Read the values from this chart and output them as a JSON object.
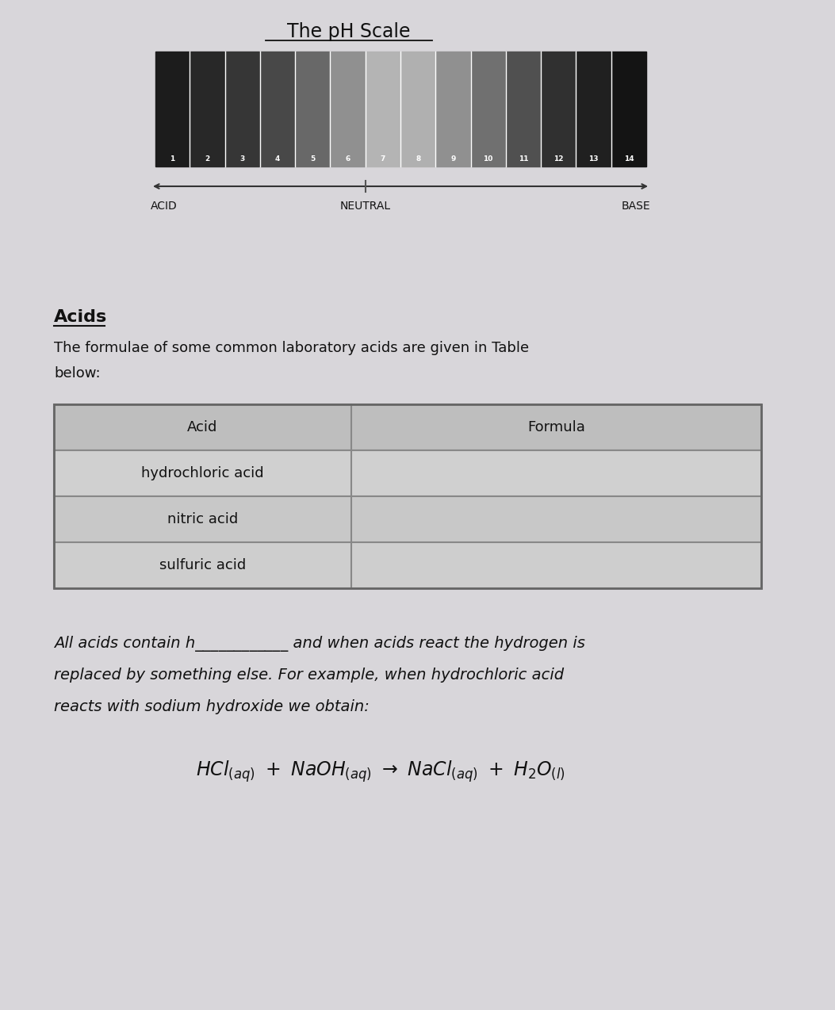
{
  "bg_color": "#cccbcf",
  "paper_color": "#d8d6da",
  "title": "The pH Scale",
  "title_fontsize": 17,
  "acids_heading": "Acids",
  "intro_line1": "The formulae of some common laboratory acids are given in Table",
  "intro_line2": "below:",
  "table_headers": [
    "Acid",
    "Formula"
  ],
  "table_rows": [
    [
      "hydrochloric acid",
      ""
    ],
    [
      "nitric acid",
      ""
    ],
    [
      "sulfuric acid",
      ""
    ]
  ],
  "fill_line1": "All acids contain h____________ and when acids react the hydrogen is",
  "fill_line2": "replaced by something else. For example, when hydrochloric acid",
  "fill_line3": "reacts with sodium hydroxide we obtain:",
  "acid_label": "ACID",
  "neutral_label": "NEUTRAL",
  "base_label": "BASE",
  "ph_bar_colors": [
    "#1c1c1c",
    "#282828",
    "#363636",
    "#484848",
    "#686868",
    "#909090",
    "#b4b4b4",
    "#b0b0b0",
    "#909090",
    "#707070",
    "#505050",
    "#303030",
    "#202020",
    "#141414"
  ],
  "ph_labels": [
    "1",
    "2",
    "3",
    "4",
    "5",
    "6",
    "7",
    "8",
    "9",
    "10",
    "11",
    "12",
    "13",
    "14"
  ],
  "table_header_bg": "#bebebe",
  "table_row_bgs": [
    "#d0d0d0",
    "#c8c8c8",
    "#cecece"
  ],
  "table_border_color": "#888888",
  "text_color": "#111111"
}
